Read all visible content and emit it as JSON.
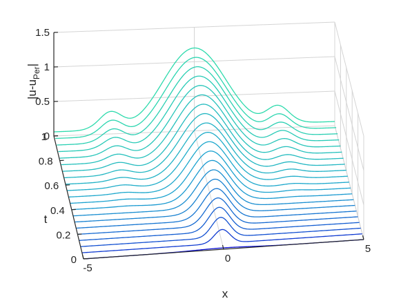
{
  "chart_data": {
    "type": "line",
    "subtype": "waterfall-3d",
    "title": "",
    "xlabel": "x",
    "ylabel": "t",
    "zlabel": {
      "base": "|u-u",
      "sub": "Per",
      "end": "|"
    },
    "xlim": [
      -5,
      5
    ],
    "ylim": [
      0,
      1
    ],
    "zlim": [
      0,
      1.5
    ],
    "x_ticks": [
      "-5",
      "0",
      "5"
    ],
    "y_ticks": [
      "0",
      "0.2",
      "0.4",
      "0.6",
      "0.8",
      "1"
    ],
    "z_ticks": [
      "0",
      "0.5",
      "1",
      "1.5"
    ],
    "grid": true,
    "colormap": [
      "#0a0ad2",
      "#1aa0d0",
      "#2ee0a8"
    ],
    "num_traces": 21,
    "t_values": [
      0,
      0.05,
      0.1,
      0.15,
      0.2,
      0.25,
      0.3,
      0.35,
      0.4,
      0.45,
      0.5,
      0.55,
      0.6,
      0.65,
      0.7,
      0.75,
      0.8,
      0.85,
      0.9,
      0.95,
      1.0
    ],
    "peak_amplitude": [
      0.02,
      0.2,
      0.29,
      0.35,
      0.4,
      0.45,
      0.5,
      0.55,
      0.6,
      0.65,
      0.7,
      0.75,
      0.8,
      0.85,
      0.9,
      0.95,
      1.0,
      1.05,
      1.1,
      1.15,
      1.2
    ],
    "peak_width": [
      1.0,
      0.28,
      0.32,
      0.37,
      0.42,
      0.47,
      0.52,
      0.57,
      0.62,
      0.67,
      0.72,
      0.77,
      0.81,
      0.85,
      0.88,
      0.92,
      0.96,
      1.0,
      1.04,
      1.08,
      1.12
    ],
    "side_bump_amplitude": [
      0.0,
      0.0,
      0.0,
      0.0,
      0.0,
      0.0,
      0.0,
      0.0,
      0.01,
      0.02,
      0.03,
      0.05,
      0.07,
      0.09,
      0.11,
      0.14,
      0.17,
      0.2,
      0.23,
      0.26,
      0.29
    ],
    "side_bump_center": 3.0,
    "baseline_tail_level": 0.06
  }
}
